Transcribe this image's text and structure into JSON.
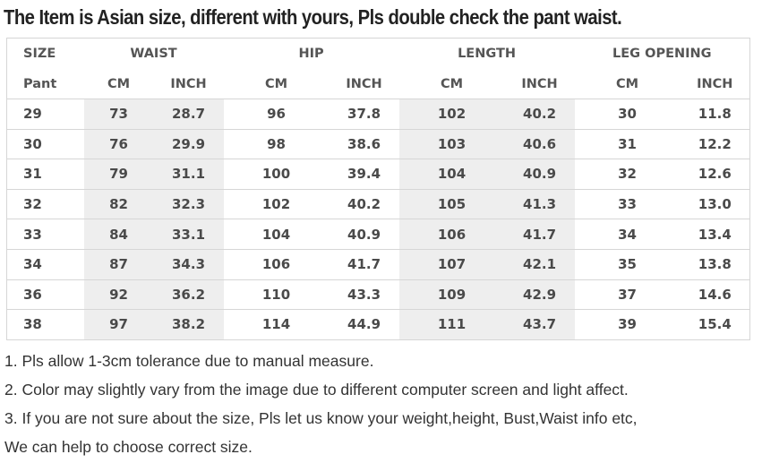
{
  "title": "The Item is Asian size, different with yours, Pls double check the pant waist.",
  "table": {
    "group_headers": [
      "SIZE",
      "WAIST",
      "HIP",
      "LENGTH",
      "LEG OPENING"
    ],
    "sub_headers": [
      "Pant",
      "CM",
      "INCH",
      "CM",
      "INCH",
      "CM",
      "INCH",
      "CM",
      "INCH"
    ],
    "rows": [
      [
        "29",
        "73",
        "28.7",
        "96",
        "37.8",
        "102",
        "40.2",
        "30",
        "11.8"
      ],
      [
        "30",
        "76",
        "29.9",
        "98",
        "38.6",
        "103",
        "40.6",
        "31",
        "12.2"
      ],
      [
        "31",
        "79",
        "31.1",
        "100",
        "39.4",
        "104",
        "40.9",
        "32",
        "12.6"
      ],
      [
        "32",
        "82",
        "32.3",
        "102",
        "40.2",
        "105",
        "41.3",
        "33",
        "13.0"
      ],
      [
        "33",
        "84",
        "33.1",
        "104",
        "40.9",
        "106",
        "41.7",
        "34",
        "13.4"
      ],
      [
        "34",
        "87",
        "34.3",
        "106",
        "41.7",
        "107",
        "42.1",
        "35",
        "13.8"
      ],
      [
        "36",
        "92",
        "36.2",
        "110",
        "43.3",
        "109",
        "42.9",
        "37",
        "14.6"
      ],
      [
        "38",
        "97",
        "38.2",
        "114",
        "44.9",
        "111",
        "43.7",
        "39",
        "15.4"
      ]
    ]
  },
  "notes": [
    "1. Pls allow 1-3cm tolerance due to manual measure.",
    "2. Color may slightly vary from the image due to different computer screen and light affect.",
    "3. If you are not sure about the size, Pls let us know your weight,height, Bust,Waist info etc,",
    "We can help to choose correct size."
  ]
}
